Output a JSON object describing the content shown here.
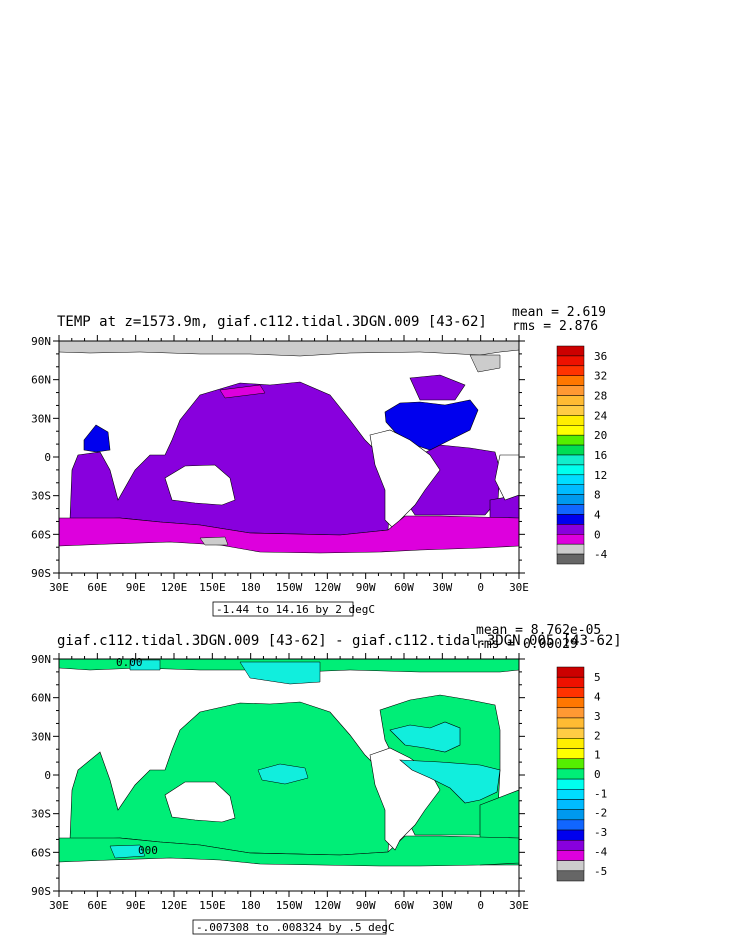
{
  "panels": [
    {
      "title": "TEMP at z=1573.9m, giaf.c112.tidal.3DGN.009 [43-62]",
      "stats": {
        "mean": "mean = 2.619",
        "rms": "rms = 2.876"
      },
      "range_note": "-1.44 to 14.16 by 2 degC",
      "lat_labels": [
        "90N",
        "60N",
        "30N",
        "0",
        "30S",
        "60S",
        "90S"
      ],
      "lon_labels": [
        "30E",
        "60E",
        "90E",
        "120E",
        "150E",
        "180",
        "150W",
        "120W",
        "90W",
        "60W",
        "30W",
        "0",
        "30E"
      ],
      "colorbar": {
        "labels": [
          "36",
          "32",
          "28",
          "24",
          "20",
          "16",
          "12",
          "8",
          "4",
          "0",
          "-4"
        ],
        "colors": [
          "#cc0000",
          "#ee1100",
          "#ff3300",
          "#ff7700",
          "#ff9933",
          "#ffbb33",
          "#ffcc44",
          "#ffee00",
          "#ffff00",
          "#55ee00",
          "#00dd55",
          "#11eecc",
          "#00ffee",
          "#00ddff",
          "#00bbff",
          "#0099ee",
          "#1166ff",
          "#0000ee",
          "#8800dd",
          "#dd00dd",
          "#cccccc",
          "#666666"
        ]
      },
      "fills": {
        "land": "#ffffff",
        "ocean_main": "#8800dd",
        "southern": "#dd00dd",
        "atlantic_n": "#0000ee",
        "ice": "#cccccc"
      }
    },
    {
      "title": "giaf.c112.tidal.3DGN.009 [43-62] - giaf.c112.tidal.3DGN.005 [43-62]",
      "stats": {
        "mean": "mean = 8.762e-05",
        "rms": "rms = 0.00029"
      },
      "range_note": "-.007308 to .008324 by .5 degC",
      "lat_labels": [
        "90N",
        "60N",
        "30N",
        "0",
        "30S",
        "60S",
        "90S"
      ],
      "lon_labels": [
        "30E",
        "60E",
        "90E",
        "120E",
        "150E",
        "180",
        "150W",
        "120W",
        "90W",
        "60W",
        "30W",
        "0",
        "30E"
      ],
      "contour_labels": [
        "0.00",
        "000"
      ],
      "colorbar": {
        "labels": [
          "5",
          "4",
          "3",
          "2",
          "1",
          "0",
          "-1",
          "-2",
          "-3",
          "-4",
          "-5"
        ],
        "colors": [
          "#cc0000",
          "#ee1100",
          "#ff3300",
          "#ff7700",
          "#ff9933",
          "#ffbb33",
          "#ffcc44",
          "#ffee00",
          "#ffff00",
          "#55ee00",
          "#00ee77",
          "#00ffee",
          "#00ddff",
          "#00bbff",
          "#0099ee",
          "#1166ff",
          "#0000ee",
          "#8800dd",
          "#dd00dd",
          "#cccccc",
          "#666666"
        ]
      },
      "fills": {
        "land": "#ffffff",
        "ocean_main": "#00ee77",
        "anomaly": "#11eedd"
      }
    }
  ]
}
